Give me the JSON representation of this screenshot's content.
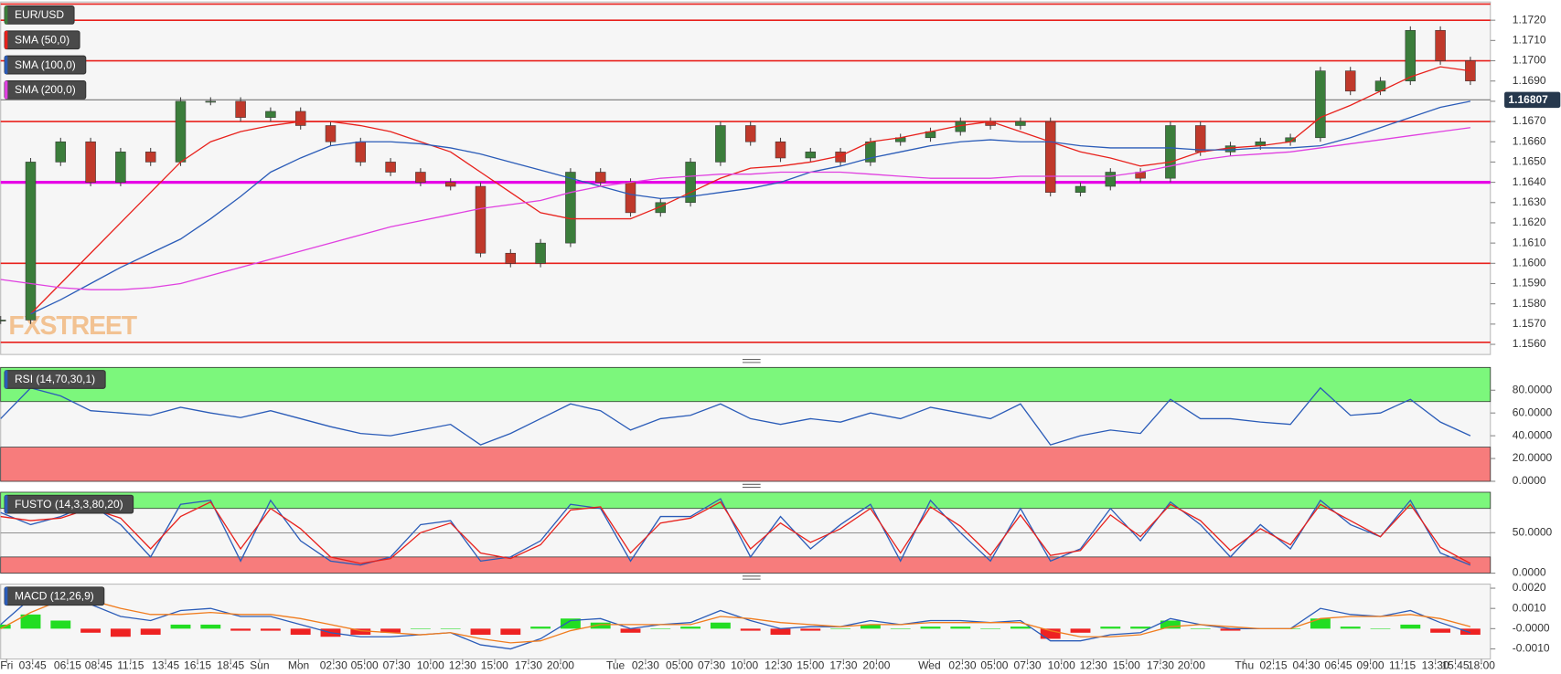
{
  "chart_data": [
    {
      "type": "candlestick",
      "xlim": [
        0,
        298
      ],
      "x": [
        0,
        6,
        12,
        18,
        24,
        30,
        36,
        42,
        48,
        54,
        60,
        66,
        72,
        78,
        84,
        90,
        96,
        102,
        108,
        114,
        120,
        126,
        132,
        138,
        144,
        150,
        156,
        162,
        168,
        174,
        180,
        186,
        192,
        198,
        204,
        210,
        216,
        222,
        228,
        234,
        240,
        246,
        252,
        258,
        264,
        270,
        276,
        282,
        288,
        294
      ],
      "ylim": [
        1.1555,
        1.1729
      ],
      "yticks": [
        {
          "value": 1.156,
          "label": "1.1560"
        },
        {
          "value": 1.157,
          "label": "1.1570"
        },
        {
          "value": 1.158,
          "label": "1.1580"
        },
        {
          "value": 1.159,
          "label": "1.1590"
        },
        {
          "value": 1.16,
          "label": "1.1600"
        },
        {
          "value": 1.161,
          "label": "1.1610"
        },
        {
          "value": 1.162,
          "label": "1.1620"
        },
        {
          "value": 1.163,
          "label": "1.1630"
        },
        {
          "value": 1.164,
          "label": "1.1640"
        },
        {
          "value": 1.165,
          "label": "1.1650"
        },
        {
          "value": 1.166,
          "label": "1.1660"
        },
        {
          "value": 1.167,
          "label": "1.1670"
        },
        {
          "value": 1.168,
          "label": "1.1680"
        },
        {
          "value": 1.169,
          "label": "1.1690"
        },
        {
          "value": 1.17,
          "label": "1.1700"
        },
        {
          "value": 1.171,
          "label": "1.1710"
        },
        {
          "value": 1.172,
          "label": "1.1720"
        }
      ],
      "last": 1.16807,
      "watermark": "FXSTREET",
      "levels": [
        {
          "value": 1.1728,
          "color": "#e8211c"
        },
        {
          "value": 1.172,
          "color": "#e8211c"
        },
        {
          "value": 1.17,
          "color": "#e8211c"
        },
        {
          "value": 1.167,
          "color": "#e8211c"
        },
        {
          "value": 1.16,
          "color": "#e8211c"
        },
        {
          "value": 1.1561,
          "color": "#e8211c"
        },
        {
          "value": 1.164,
          "color": "#e600e6"
        }
      ],
      "series": [
        {
          "name": "EUR/USD",
          "type": "candle",
          "color": "#3b7d3b",
          "up_color": "#3b7d3b",
          "down_color": "#c0392b",
          "values": [
            1.1572,
            1.165,
            1.166,
            1.164,
            1.1655,
            1.165,
            1.168,
            1.168,
            1.1672,
            1.1675,
            1.1668,
            1.166,
            1.165,
            1.1645,
            1.164,
            1.1638,
            1.1605,
            1.16,
            1.161,
            1.1645,
            1.164,
            1.1625,
            1.163,
            1.165,
            1.1668,
            1.166,
            1.1652,
            1.1655,
            1.165,
            1.166,
            1.1662,
            1.1665,
            1.167,
            1.1668,
            1.167,
            1.1635,
            1.1638,
            1.1645,
            1.1642,
            1.1668,
            1.1655,
            1.1658,
            1.166,
            1.1662,
            1.1695,
            1.1685,
            1.169,
            1.1715,
            1.17,
            1.169
          ]
        },
        {
          "name": "SMA (50,0)",
          "type": "line",
          "color": "#e8211c",
          "values": [
            null,
            1.1575,
            1.159,
            1.1605,
            1.162,
            1.1635,
            1.165,
            1.166,
            1.1665,
            1.1668,
            1.167,
            1.167,
            1.1668,
            1.1665,
            1.166,
            1.1655,
            1.1645,
            1.1635,
            1.1625,
            1.1622,
            1.1622,
            1.1622,
            1.1628,
            1.1635,
            1.1642,
            1.1647,
            1.1648,
            1.165,
            1.1653,
            1.166,
            1.1662,
            1.1665,
            1.1668,
            1.167,
            1.1665,
            1.166,
            1.1655,
            1.1652,
            1.1648,
            1.165,
            1.1655,
            1.1657,
            1.1658,
            1.166,
            1.1672,
            1.1678,
            1.1685,
            1.1692,
            1.1697,
            1.1695
          ]
        },
        {
          "name": "SMA (100,0)",
          "type": "line",
          "color": "#2b5cb8",
          "values": [
            null,
            1.1575,
            1.1582,
            1.159,
            1.1598,
            1.1605,
            1.1612,
            1.1622,
            1.1633,
            1.1645,
            1.1652,
            1.1658,
            1.166,
            1.166,
            1.1659,
            1.1657,
            1.1654,
            1.165,
            1.1646,
            1.1642,
            1.1638,
            1.1634,
            1.1632,
            1.1633,
            1.1635,
            1.1637,
            1.164,
            1.1645,
            1.1648,
            1.1652,
            1.1655,
            1.1658,
            1.166,
            1.1661,
            1.166,
            1.166,
            1.1658,
            1.1657,
            1.1657,
            1.1657,
            1.1656,
            1.1656,
            1.1657,
            1.1657,
            1.1658,
            1.1662,
            1.1667,
            1.1672,
            1.1677,
            1.168
          ]
        },
        {
          "name": "SMA (200,0)",
          "type": "line",
          "color": "#e040e0",
          "values": [
            1.1592,
            1.159,
            1.1588,
            1.1587,
            1.1587,
            1.1588,
            1.159,
            1.1594,
            1.1598,
            1.1602,
            1.1606,
            1.161,
            1.1614,
            1.1618,
            1.1621,
            1.1624,
            1.1627,
            1.1629,
            1.1631,
            1.1635,
            1.1638,
            1.164,
            1.1642,
            1.1643,
            1.1644,
            1.1644,
            1.1645,
            1.1645,
            1.1645,
            1.1644,
            1.1643,
            1.1642,
            1.1642,
            1.1642,
            1.1643,
            1.1643,
            1.1643,
            1.1643,
            1.1645,
            1.1648,
            1.1651,
            1.1653,
            1.1654,
            1.1655,
            1.1657,
            1.1659,
            1.1661,
            1.1663,
            1.1665,
            1.1667
          ]
        }
      ]
    },
    {
      "type": "line",
      "title": "RSI (14,70,30,1)",
      "ylim": [
        0,
        100
      ],
      "yticks": [
        {
          "value": 0,
          "label": "0.0000"
        },
        {
          "value": 20,
          "label": "20.0000"
        },
        {
          "value": 40,
          "label": "40.0000"
        },
        {
          "value": 60,
          "label": "60.0000"
        },
        {
          "value": 80,
          "label": "80.0000"
        }
      ],
      "zones": [
        {
          "from": 70,
          "to": 100,
          "color": "#7cf77c"
        },
        {
          "from": 0,
          "to": 30,
          "color": "#f77c7c"
        }
      ],
      "series": [
        {
          "color": "#2b5cb8",
          "values": [
            55,
            82,
            75,
            62,
            60,
            58,
            65,
            60,
            56,
            62,
            55,
            48,
            42,
            40,
            45,
            50,
            32,
            42,
            55,
            68,
            62,
            45,
            55,
            58,
            68,
            55,
            50,
            55,
            52,
            60,
            55,
            65,
            60,
            55,
            68,
            32,
            40,
            45,
            42,
            72,
            55,
            55,
            52,
            50,
            82,
            58,
            60,
            72,
            52,
            40
          ]
        }
      ]
    },
    {
      "type": "line",
      "title": "FUSTO (14,3,3,80,20)",
      "ylim": [
        0,
        100
      ],
      "grid": true,
      "yticks": [
        {
          "value": 0,
          "label": "0.0000"
        },
        {
          "value": 50,
          "label": "50.0000"
        }
      ],
      "zones": [
        {
          "from": 80,
          "to": 100,
          "color": "#7cf77c"
        },
        {
          "from": 0,
          "to": 20,
          "color": "#f77c7c"
        }
      ],
      "series": [
        {
          "color": "#2b5cb8",
          "values": [
            75,
            60,
            70,
            85,
            60,
            20,
            85,
            90,
            15,
            90,
            40,
            15,
            10,
            20,
            60,
            65,
            15,
            20,
            40,
            85,
            80,
            15,
            70,
            70,
            92,
            20,
            70,
            30,
            60,
            85,
            15,
            90,
            50,
            15,
            80,
            15,
            30,
            80,
            40,
            88,
            60,
            20,
            60,
            30,
            90,
            60,
            45,
            90,
            25,
            10
          ]
        },
        {
          "color": "#e8211c",
          "values": [
            70,
            65,
            68,
            80,
            68,
            30,
            70,
            88,
            30,
            80,
            55,
            20,
            12,
            18,
            50,
            62,
            25,
            18,
            35,
            78,
            82,
            25,
            62,
            68,
            88,
            30,
            62,
            38,
            55,
            80,
            25,
            82,
            58,
            22,
            72,
            22,
            28,
            72,
            45,
            85,
            65,
            28,
            55,
            35,
            85,
            65,
            45,
            85,
            32,
            12
          ]
        }
      ]
    },
    {
      "type": "macd",
      "title": "MACD (12,26,9)",
      "ylim": [
        -0.0015,
        0.0022
      ],
      "yticks": [
        {
          "value": -0.001,
          "label": "-0.0010"
        },
        {
          "value": 0,
          "label": "-0.0000"
        },
        {
          "value": 0.001,
          "label": "0.0010"
        },
        {
          "value": 0.002,
          "label": "0.0020"
        }
      ],
      "xticks": [
        {
          "value": 1.2,
          "label": "Fri"
        },
        {
          "value": 6.4,
          "label": "03:45"
        },
        {
          "value": 13.4,
          "label": "06:15"
        },
        {
          "value": 19.6,
          "label": "08:45"
        },
        {
          "value": 26,
          "label": "11:15"
        },
        {
          "value": 33,
          "label": "13:45"
        },
        {
          "value": 39.4,
          "label": "16:15"
        },
        {
          "value": 46,
          "label": "18:45"
        },
        {
          "value": 51.8,
          "label": "Sun"
        },
        {
          "value": 59.6,
          "label": "Mon"
        },
        {
          "value": 66.6,
          "label": "02:30"
        },
        {
          "value": 72.8,
          "label": "05:00"
        },
        {
          "value": 79.2,
          "label": "07:30"
        },
        {
          "value": 86,
          "label": "10:00"
        },
        {
          "value": 92.4,
          "label": "12:30"
        },
        {
          "value": 98.8,
          "label": "15:00"
        },
        {
          "value": 105.6,
          "label": "17:30"
        },
        {
          "value": 112,
          "label": "20:00"
        },
        {
          "value": 123,
          "label": "Tue"
        },
        {
          "value": 129,
          "label": "02:30"
        },
        {
          "value": 135.8,
          "label": "05:00"
        },
        {
          "value": 142.2,
          "label": "07:30"
        },
        {
          "value": 148.8,
          "label": "10:00"
        },
        {
          "value": 155.6,
          "label": "12:30"
        },
        {
          "value": 162,
          "label": "15:00"
        },
        {
          "value": 168.6,
          "label": "17:30"
        },
        {
          "value": 175.2,
          "label": "20:00"
        },
        {
          "value": 185.8,
          "label": "Wed"
        },
        {
          "value": 192.4,
          "label": "02:30"
        },
        {
          "value": 198.8,
          "label": "05:00"
        },
        {
          "value": 205.4,
          "label": "07:30"
        },
        {
          "value": 212.2,
          "label": "10:00"
        },
        {
          "value": 218.6,
          "label": "12:30"
        },
        {
          "value": 225.2,
          "label": "15:00"
        },
        {
          "value": 232,
          "label": "17:30"
        },
        {
          "value": 238.2,
          "label": "20:00"
        },
        {
          "value": 248.8,
          "label": "Thu"
        },
        {
          "value": 254.6,
          "label": "02:15"
        },
        {
          "value": 261.2,
          "label": "04:30"
        },
        {
          "value": 267.6,
          "label": "06:45"
        },
        {
          "value": 274,
          "label": "09:00"
        },
        {
          "value": 280.4,
          "label": "11:15"
        },
        {
          "value": 287,
          "label": "13:30"
        },
        {
          "value": 291,
          "label": "15:45"
        },
        {
          "value": 296.2,
          "label": "18:00"
        }
      ],
      "histogram": {
        "up_color": "#22dd22",
        "down_color": "#ee2222",
        "values": [
          0.0002,
          0.0007,
          0.0004,
          -0.0002,
          -0.0004,
          -0.0003,
          0.0002,
          0.0002,
          -0.0001,
          -0.0001,
          -0.0003,
          -0.0004,
          -0.0003,
          -0.0002,
          0,
          0,
          -0.0003,
          -0.0003,
          0.0001,
          0.0005,
          0.0003,
          -0.0002,
          0,
          0.0001,
          0.0003,
          -0.0001,
          -0.0003,
          -0.0001,
          0,
          0.0002,
          0,
          0.0001,
          0.0001,
          0,
          0.0001,
          -0.0005,
          -0.0002,
          0.0001,
          0.0001,
          0.0004,
          0,
          -0.0001,
          0,
          0,
          0.0005,
          0.0001,
          0,
          0.0002,
          -0.0002,
          -0.0003
        ]
      },
      "series": [
        {
          "color": "#2b5cb8",
          "values": [
            0.0002,
            0.0015,
            0.0018,
            0.0012,
            0.0006,
            0.0004,
            0.0009,
            0.001,
            0.0006,
            0.0006,
            0.0002,
            -0.0002,
            -0.0004,
            -0.0004,
            -0.0003,
            -0.0002,
            -0.0008,
            -0.001,
            -0.0005,
            0.0004,
            0.0005,
            0,
            0.0002,
            0.0003,
            0.0009,
            0.0004,
            0,
            0.0001,
            0.0001,
            0.0004,
            0.0002,
            0.0004,
            0.0004,
            0.0003,
            0.0004,
            -0.0006,
            -0.0006,
            -0.0003,
            -0.0002,
            0.0005,
            0.0002,
            0,
            0,
            0,
            0.001,
            0.0007,
            0.0006,
            0.0009,
            0.0003,
            -0.0002
          ]
        },
        {
          "color": "#f07c1e",
          "values": [
            0,
            0.0008,
            0.0014,
            0.0014,
            0.001,
            0.0007,
            0.0007,
            0.0008,
            0.0007,
            0.0007,
            0.0005,
            0.0002,
            -0.0001,
            -0.0002,
            -0.0003,
            -0.0002,
            -0.0005,
            -0.0007,
            -0.0006,
            -0.0001,
            0.0002,
            0.0002,
            0.0002,
            0.0002,
            0.0006,
            0.0005,
            0.0003,
            0.0002,
            0.0001,
            0.0002,
            0.0002,
            0.0003,
            0.0003,
            0.0003,
            0.0003,
            -0.0001,
            -0.0004,
            -0.0004,
            -0.0003,
            0.0001,
            0.0002,
            0.0001,
            0,
            0,
            0.0005,
            0.0006,
            0.0006,
            0.0007,
            0.0005,
            0.0001
          ]
        }
      ]
    }
  ]
}
